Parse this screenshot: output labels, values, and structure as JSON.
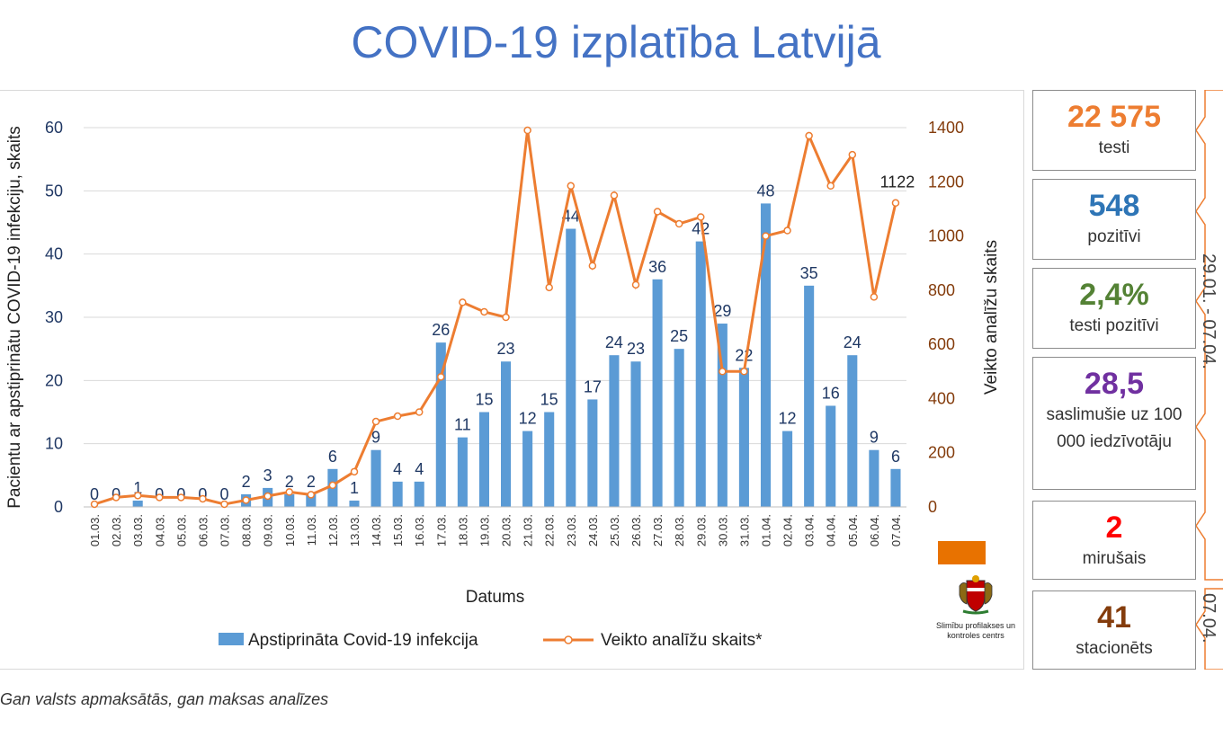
{
  "title": "COVID-19 izplatība Latvijā",
  "footnote": "Gan valsts apmaksātās, gan maksas analīzes",
  "colors": {
    "title": "#4472C4",
    "bars": "#5B9BD5",
    "line": "#ED7D31",
    "axis_left": "#203864",
    "axis_right": "#843C0C"
  },
  "chart_data": {
    "type": "bar",
    "xlabel": "Datums",
    "ylabel": "Pacientu ar apstiprinātu COVID-19 infekciju, skaits",
    "y2label": "Veikto analīžu skaits",
    "ylim": [
      0,
      60
    ],
    "y2lim": [
      0,
      1400
    ],
    "yticks": [
      "0",
      "10",
      "20",
      "30",
      "40",
      "50",
      "60"
    ],
    "y2ticks": [
      "0",
      "200",
      "400",
      "600",
      "800",
      "1000",
      "1200",
      "1400"
    ],
    "grid": true,
    "legend_position": "bottom",
    "categories": [
      "01.03.",
      "02.03.",
      "03.03.",
      "04.03.",
      "05.03.",
      "06.03.",
      "07.03.",
      "08.03.",
      "09.03.",
      "10.03.",
      "11.03.",
      "12.03.",
      "13.03.",
      "14.03.",
      "15.03.",
      "16.03.",
      "17.03.",
      "18.03.",
      "19.03.",
      "20.03.",
      "21.03.",
      "22.03.",
      "23.03.",
      "24.03.",
      "25.03.",
      "26.03.",
      "27.03.",
      "28.03.",
      "29.03.",
      "30.03.",
      "31.03.",
      "01.04.",
      "02.04.",
      "03.04.",
      "04.04.",
      "05.04.",
      "06.04.",
      "07.04."
    ],
    "series": [
      {
        "name": "Apstiprināta Covid-19 infekcija",
        "type": "bar",
        "axis": "left",
        "values": [
          0,
          0,
          1,
          0,
          0,
          0,
          0,
          2,
          3,
          2,
          2,
          6,
          1,
          9,
          4,
          4,
          26,
          11,
          15,
          23,
          12,
          15,
          44,
          17,
          24,
          23,
          36,
          25,
          42,
          29,
          22,
          48,
          12,
          35,
          16,
          24,
          9,
          6
        ]
      },
      {
        "name": "Veikto analīžu skaits*",
        "type": "line",
        "axis": "right",
        "values": [
          10,
          35,
          42,
          35,
          35,
          30,
          10,
          25,
          40,
          55,
          45,
          80,
          130,
          315,
          335,
          350,
          480,
          755,
          720,
          700,
          1390,
          810,
          1185,
          890,
          1150,
          820,
          1090,
          1045,
          1070,
          500,
          500,
          1000,
          1020,
          1370,
          1185,
          1300,
          775,
          1122
        ],
        "labeled_value": "1122"
      }
    ]
  },
  "stats": [
    {
      "value": "22 575",
      "label": "testi",
      "color": "#ED7D31"
    },
    {
      "value": "548",
      "label": "pozitīvi",
      "color": "#2E75B6"
    },
    {
      "value": "2,4%",
      "label": "testi pozitīvi",
      "color": "#548235"
    },
    {
      "value": "28,5",
      "label": "saslimušie uz 100 000 iedzīvotāju",
      "color": "#7030A0"
    },
    {
      "value": "2",
      "label": "mirušais",
      "color": "#FF0000"
    },
    {
      "value": "41",
      "label": "stacionēts",
      "color": "#843C0C"
    }
  ],
  "side_labels": {
    "range": "29.01. - 07.04.",
    "date": "07.04."
  },
  "logo": {
    "text": "Slimību profilakses un kontroles centrs",
    "icon": "latvia-coat-of-arms-icon"
  }
}
